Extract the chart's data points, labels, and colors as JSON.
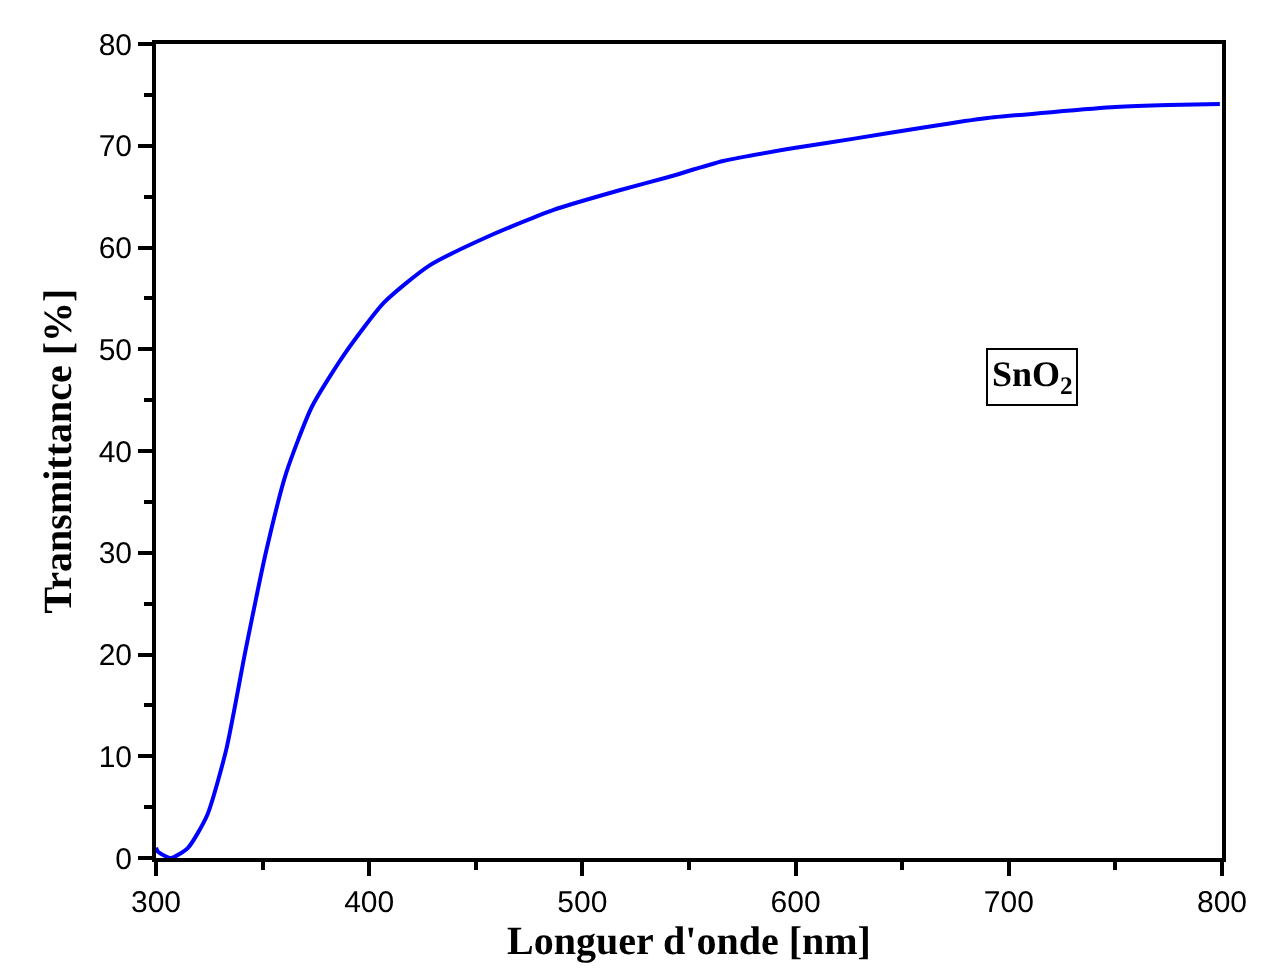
{
  "chart_data": {
    "type": "line",
    "xlabel": "Longuer d'onde [nm]",
    "ylabel": "Transmittance [%]",
    "x": [
      300,
      301,
      307,
      315,
      324,
      333,
      342,
      351.5,
      361,
      373,
      388,
      407,
      428,
      456,
      486.5,
      517,
      540,
      566,
      600,
      627.5,
      660,
      689,
      720,
      750,
      775,
      799
    ],
    "series": [
      {
        "color": "#0000ff",
        "values": [
          1.0,
          0.6,
          0,
          1.0,
          4.2,
          10.7,
          20.4,
          30,
          37.8,
          44.3,
          49.4,
          54.6,
          58.2,
          61.1,
          63.7,
          65.6,
          66.9,
          68.5,
          69.8,
          70.7,
          71.8,
          72.7,
          73.3,
          73.8,
          74.0,
          74.1
        ]
      }
    ],
    "xlim": [
      300,
      800
    ],
    "xticks": [
      300,
      400,
      500,
      600,
      700,
      800
    ],
    "ylim": [
      0,
      80
    ],
    "yticks": [
      0,
      10,
      20,
      30,
      40,
      50,
      60,
      70,
      80
    ],
    "annotations": [
      "SnO$_{2}$"
    ],
    "marker": "none",
    "line_style": "solid"
  }
}
